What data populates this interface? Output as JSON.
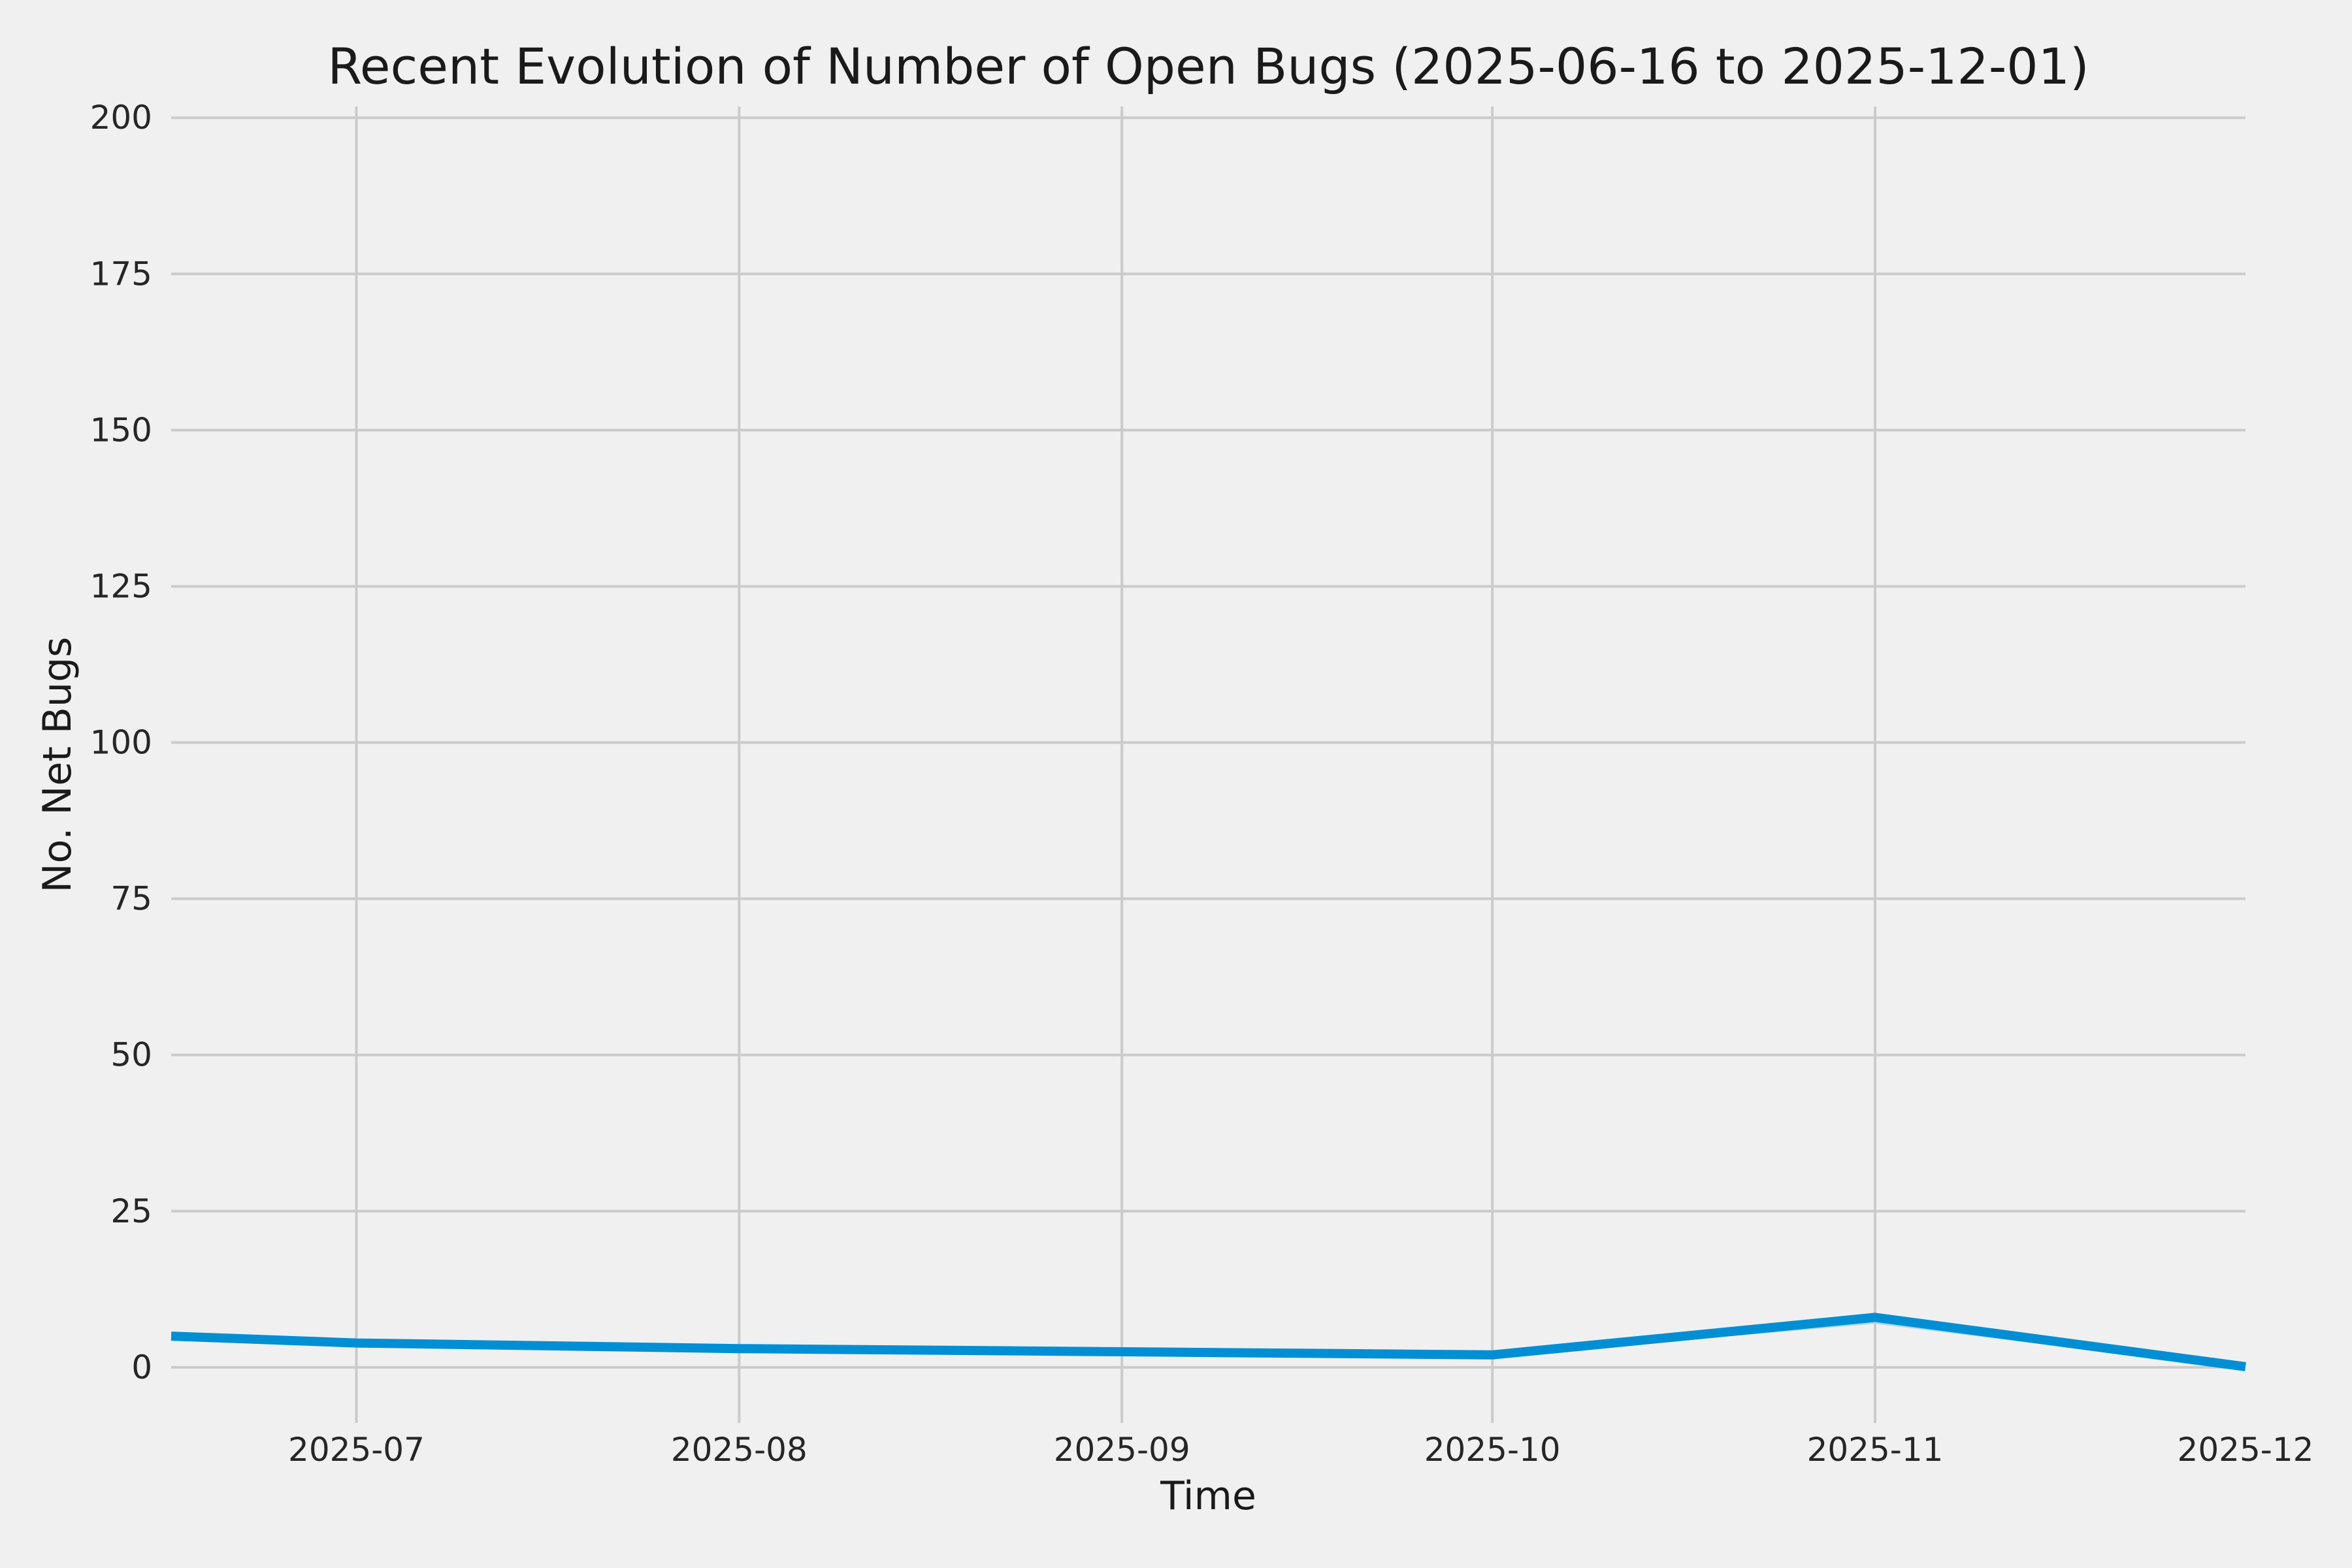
{
  "figure": {
    "background": "#f0f0f0"
  },
  "chart_data": {
    "type": "line",
    "title": "Recent Evolution of Number of Open Bugs (2025-06-16 to 2025-12-01)",
    "xlabel": "Time",
    "ylabel": "No. Net Bugs",
    "x_start": "2025-06-16",
    "x_end": "2025-12-01",
    "x_ticks": [
      {
        "label": "2025-07",
        "date": "2025-07-01",
        "gridline": true
      },
      {
        "label": "2025-08",
        "date": "2025-08-01",
        "gridline": true
      },
      {
        "label": "2025-09",
        "date": "2025-09-01",
        "gridline": true
      },
      {
        "label": "2025-10",
        "date": "2025-10-01",
        "gridline": true
      },
      {
        "label": "2025-11",
        "date": "2025-11-01",
        "gridline": true
      },
      {
        "label": "2025-12",
        "date": "2025-12-01",
        "gridline": false
      }
    ],
    "y_ticks": [
      0,
      25,
      50,
      75,
      100,
      125,
      150,
      175,
      200
    ],
    "ylim": [
      -8.9,
      201.8
    ],
    "grid": true,
    "legend_position": "none",
    "colors": {
      "background": "#f0f0f0",
      "gridline": "#cbcbcb",
      "primary_line": "#008fd5",
      "underlay_line": "#b3d7ea",
      "text": "#1a1a1a",
      "tick_text": "#262626"
    },
    "series": [
      {
        "name": "open-bugs-underlay",
        "color_key": "underlay_line",
        "width": 3.5,
        "points": [
          [
            "2025-06-16",
            4.9
          ],
          [
            "2025-07-01",
            3.8
          ],
          [
            "2025-08-01",
            2.9
          ],
          [
            "2025-09-01",
            2.4
          ],
          [
            "2025-10-01",
            1.9
          ],
          [
            "2025-11-01",
            7.15
          ],
          [
            "2025-12-01",
            -0.1
          ]
        ]
      },
      {
        "name": "open-bugs",
        "color_key": "primary_line",
        "width": 14,
        "points": [
          [
            "2025-06-16",
            5.0
          ],
          [
            "2025-07-01",
            3.9
          ],
          [
            "2025-08-01",
            3.0
          ],
          [
            "2025-09-01",
            2.5
          ],
          [
            "2025-10-01",
            2.0
          ],
          [
            "2025-11-01",
            8.0
          ],
          [
            "2025-12-01",
            0.1
          ]
        ]
      }
    ]
  }
}
